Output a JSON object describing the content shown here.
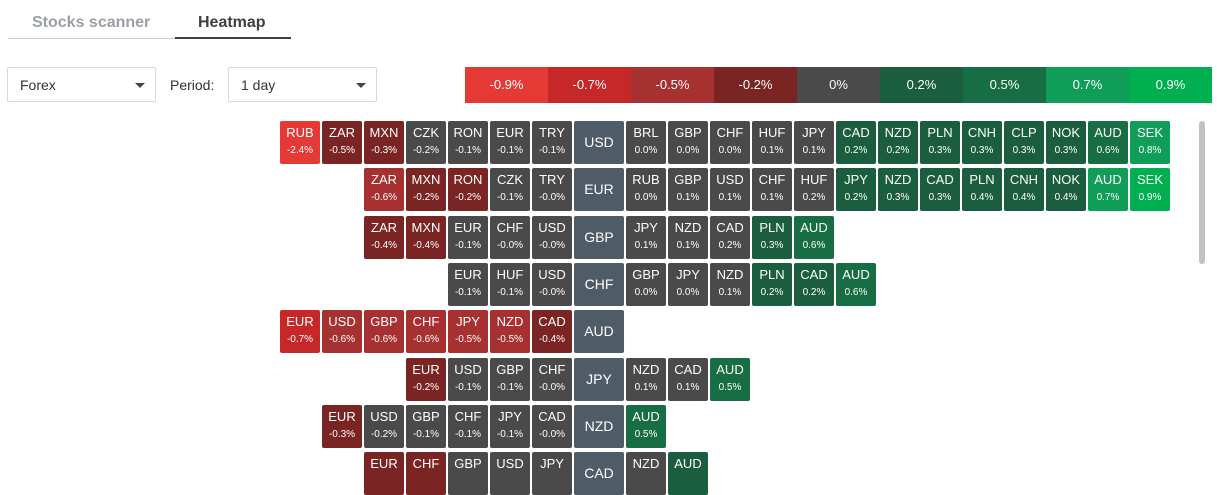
{
  "tabs": [
    "Stocks scanner",
    "Heatmap"
  ],
  "filters": {
    "market": "Forex",
    "period_label": "Period:",
    "period": "1 day"
  },
  "legend": [
    {
      "label": "-0.9%",
      "color": "#e53935"
    },
    {
      "label": "-0.7%",
      "color": "#c62828"
    },
    {
      "label": "-0.5%",
      "color": "#a73030"
    },
    {
      "label": "-0.2%",
      "color": "#7b2424"
    },
    {
      "label": "0%",
      "color": "#4a4a4a"
    },
    {
      "label": "0.2%",
      "color": "#1b5e3f"
    },
    {
      "label": "0.5%",
      "color": "#176d44"
    },
    {
      "label": "0.7%",
      "color": "#0f9d58"
    },
    {
      "label": "0.9%",
      "color": "#00b050"
    }
  ],
  "rows": [
    {
      "base": "USD",
      "left": [
        {
          "s": "RUB",
          "c": "-2.4%"
        },
        {
          "s": "ZAR",
          "c": "-0.5%"
        },
        {
          "s": "MXN",
          "c": "-0.3%"
        },
        {
          "s": "CZK",
          "c": "-0.2%"
        },
        {
          "s": "RON",
          "c": "-0.1%"
        },
        {
          "s": "EUR",
          "c": "-0.1%"
        },
        {
          "s": "TRY",
          "c": "-0.1%"
        }
      ],
      "right": [
        {
          "s": "BRL",
          "c": "0.0%"
        },
        {
          "s": "GBP",
          "c": "0.0%"
        },
        {
          "s": "CHF",
          "c": "0.0%"
        },
        {
          "s": "HUF",
          "c": "0.1%"
        },
        {
          "s": "JPY",
          "c": "0.1%"
        },
        {
          "s": "CAD",
          "c": "0.2%"
        },
        {
          "s": "NZD",
          "c": "0.2%"
        },
        {
          "s": "PLN",
          "c": "0.3%"
        },
        {
          "s": "CNH",
          "c": "0.3%"
        },
        {
          "s": "CLP",
          "c": "0.3%"
        },
        {
          "s": "NOK",
          "c": "0.3%"
        },
        {
          "s": "AUD",
          "c": "0.6%"
        },
        {
          "s": "SEK",
          "c": "0.8%"
        }
      ]
    },
    {
      "base": "EUR",
      "left": [
        {
          "s": "ZAR",
          "c": "-0.6%"
        },
        {
          "s": "MXN",
          "c": "-0.2%"
        },
        {
          "s": "RON",
          "c": "-0.2%"
        },
        {
          "s": "CZK",
          "c": "-0.1%"
        },
        {
          "s": "TRY",
          "c": "-0.0%"
        }
      ],
      "right": [
        {
          "s": "RUB",
          "c": "0.0%"
        },
        {
          "s": "GBP",
          "c": "0.1%"
        },
        {
          "s": "USD",
          "c": "0.1%"
        },
        {
          "s": "CHF",
          "c": "0.1%"
        },
        {
          "s": "HUF",
          "c": "0.2%"
        },
        {
          "s": "JPY",
          "c": "0.2%"
        },
        {
          "s": "NZD",
          "c": "0.3%"
        },
        {
          "s": "CAD",
          "c": "0.3%"
        },
        {
          "s": "PLN",
          "c": "0.4%"
        },
        {
          "s": "CNH",
          "c": "0.4%"
        },
        {
          "s": "NOK",
          "c": "0.4%"
        },
        {
          "s": "AUD",
          "c": "0.7%"
        },
        {
          "s": "SEK",
          "c": "0.9%"
        }
      ]
    },
    {
      "base": "GBP",
      "left": [
        {
          "s": "ZAR",
          "c": "-0.4%"
        },
        {
          "s": "MXN",
          "c": "-0.4%"
        },
        {
          "s": "EUR",
          "c": "-0.1%"
        },
        {
          "s": "CHF",
          "c": "-0.0%"
        },
        {
          "s": "USD",
          "c": "-0.0%"
        }
      ],
      "right": [
        {
          "s": "JPY",
          "c": "0.1%"
        },
        {
          "s": "NZD",
          "c": "0.1%"
        },
        {
          "s": "CAD",
          "c": "0.2%"
        },
        {
          "s": "PLN",
          "c": "0.3%"
        },
        {
          "s": "AUD",
          "c": "0.6%"
        }
      ]
    },
    {
      "base": "CHF",
      "left": [
        {
          "s": "EUR",
          "c": "-0.1%"
        },
        {
          "s": "HUF",
          "c": "-0.1%"
        },
        {
          "s": "USD",
          "c": "-0.0%"
        }
      ],
      "right": [
        {
          "s": "GBP",
          "c": "0.0%"
        },
        {
          "s": "JPY",
          "c": "0.0%"
        },
        {
          "s": "NZD",
          "c": "0.1%"
        },
        {
          "s": "PLN",
          "c": "0.2%"
        },
        {
          "s": "CAD",
          "c": "0.2%"
        },
        {
          "s": "AUD",
          "c": "0.6%"
        }
      ]
    },
    {
      "base": "AUD",
      "left": [
        {
          "s": "EUR",
          "c": "-0.7%"
        },
        {
          "s": "USD",
          "c": "-0.6%"
        },
        {
          "s": "GBP",
          "c": "-0.6%"
        },
        {
          "s": "CHF",
          "c": "-0.6%"
        },
        {
          "s": "JPY",
          "c": "-0.5%"
        },
        {
          "s": "NZD",
          "c": "-0.5%"
        },
        {
          "s": "CAD",
          "c": "-0.4%"
        }
      ],
      "right": []
    },
    {
      "base": "JPY",
      "left": [
        {
          "s": "EUR",
          "c": "-0.2%"
        },
        {
          "s": "USD",
          "c": "-0.1%"
        },
        {
          "s": "GBP",
          "c": "-0.1%"
        },
        {
          "s": "CHF",
          "c": "-0.0%"
        }
      ],
      "right": [
        {
          "s": "NZD",
          "c": "0.1%"
        },
        {
          "s": "CAD",
          "c": "0.1%"
        },
        {
          "s": "AUD",
          "c": "0.5%"
        }
      ]
    },
    {
      "base": "NZD",
      "left": [
        {
          "s": "EUR",
          "c": "-0.3%"
        },
        {
          "s": "USD",
          "c": "-0.2%"
        },
        {
          "s": "GBP",
          "c": "-0.1%"
        },
        {
          "s": "CHF",
          "c": "-0.1%"
        },
        {
          "s": "JPY",
          "c": "-0.1%"
        },
        {
          "s": "CAD",
          "c": "-0.0%"
        }
      ],
      "right": [
        {
          "s": "AUD",
          "c": "0.5%"
        }
      ]
    },
    {
      "base": "CAD",
      "left": [
        {
          "s": "EUR",
          "c": ""
        },
        {
          "s": "CHF",
          "c": ""
        },
        {
          "s": "GBP",
          "c": ""
        },
        {
          "s": "USD",
          "c": ""
        },
        {
          "s": "JPY",
          "c": ""
        }
      ],
      "right": [
        {
          "s": "NZD",
          "c": ""
        },
        {
          "s": "AUD",
          "c": ""
        }
      ]
    }
  ],
  "cell_colors": {
    "USD": {
      "left": [
        "#e53935",
        "#7b2424",
        "#7b2424",
        "#4a4a4a",
        "#4a4a4a",
        "#4a4a4a",
        "#4a4a4a"
      ],
      "right": [
        "#4a4a4a",
        "#4a4a4a",
        "#4a4a4a",
        "#4a4a4a",
        "#4a4a4a",
        "#1b5e3f",
        "#1b5e3f",
        "#1b5e3f",
        "#1b5e3f",
        "#1b5e3f",
        "#1b5e3f",
        "#176d44",
        "#0f9d58"
      ]
    },
    "EUR": {
      "left": [
        "#a73030",
        "#7b2424",
        "#7b2424",
        "#4a4a4a",
        "#4a4a4a"
      ],
      "right": [
        "#4a4a4a",
        "#4a4a4a",
        "#4a4a4a",
        "#4a4a4a",
        "#4a4a4a",
        "#1b5e3f",
        "#1b5e3f",
        "#1b5e3f",
        "#1b5e3f",
        "#1b5e3f",
        "#1b5e3f",
        "#0f9d58",
        "#00b050"
      ]
    },
    "GBP": {
      "left": [
        "#7b2424",
        "#7b2424",
        "#4a4a4a",
        "#4a4a4a",
        "#4a4a4a"
      ],
      "right": [
        "#4a4a4a",
        "#4a4a4a",
        "#4a4a4a",
        "#1b5e3f",
        "#176d44"
      ]
    },
    "CHF": {
      "left": [
        "#4a4a4a",
        "#4a4a4a",
        "#4a4a4a"
      ],
      "right": [
        "#4a4a4a",
        "#4a4a4a",
        "#4a4a4a",
        "#1b5e3f",
        "#1b5e3f",
        "#176d44"
      ]
    },
    "AUD": {
      "left": [
        "#c62828",
        "#a73030",
        "#a73030",
        "#a73030",
        "#a73030",
        "#a73030",
        "#7b2424"
      ],
      "right": []
    },
    "JPY": {
      "left": [
        "#7b2424",
        "#4a4a4a",
        "#4a4a4a",
        "#4a4a4a"
      ],
      "right": [
        "#4a4a4a",
        "#4a4a4a",
        "#176d44"
      ]
    },
    "NZD": {
      "left": [
        "#7b2424",
        "#4a4a4a",
        "#4a4a4a",
        "#4a4a4a",
        "#4a4a4a",
        "#4a4a4a"
      ],
      "right": [
        "#176d44"
      ]
    },
    "CAD": {
      "left": [
        "#7b2424",
        "#7b2424",
        "#4a4a4a",
        "#4a4a4a",
        "#4a4a4a"
      ],
      "right": [
        "#4a4a4a",
        "#1b5e3f"
      ]
    }
  }
}
